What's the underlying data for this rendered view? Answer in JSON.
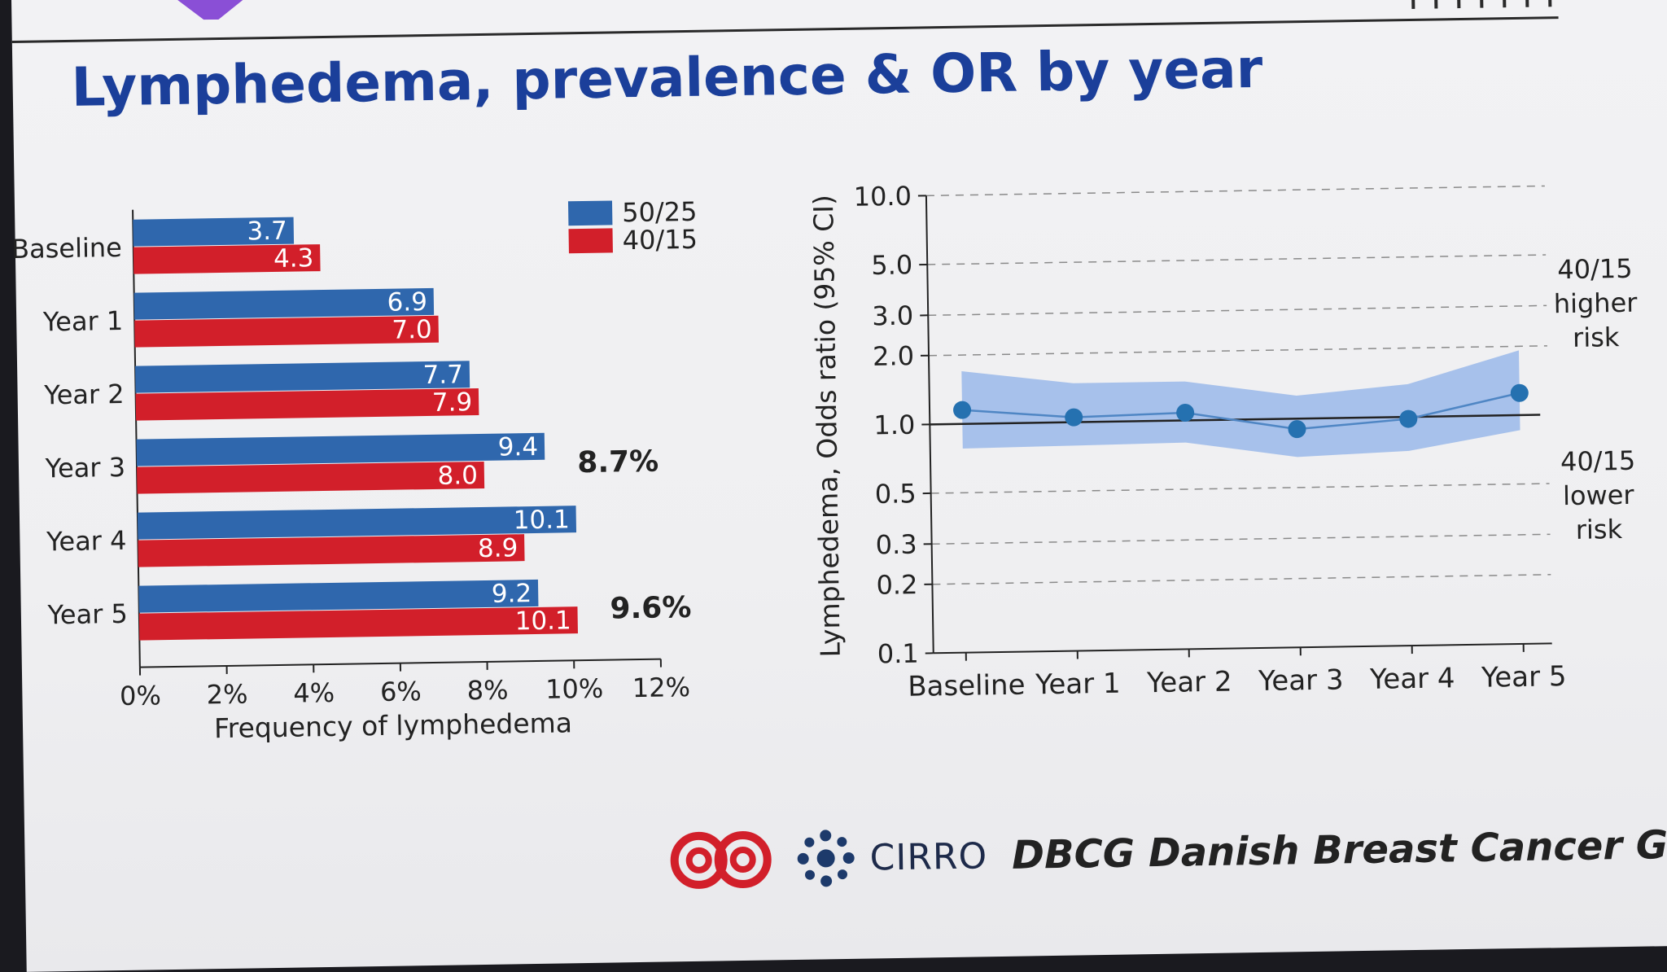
{
  "title": "Lymphedema, prevalence & OR by year",
  "colors": {
    "title": "#1b3f9a",
    "series_50_25": "#2f67ad",
    "series_40_15": "#d21f2a",
    "or_band": "#8fb2e8",
    "or_points": "#2571b0"
  },
  "chart_data": [
    {
      "type": "bar",
      "orientation": "horizontal",
      "categories": [
        "Baseline",
        "Year 1",
        "Year 2",
        "Year 3",
        "Year 4",
        "Year 5"
      ],
      "series": [
        {
          "name": "50/25",
          "values": [
            3.7,
            6.9,
            7.7,
            9.4,
            10.1,
            9.2
          ],
          "labels": [
            "3.7",
            "6.9",
            "7.7",
            "9.4",
            "10.1",
            "9.2"
          ]
        },
        {
          "name": "40/15",
          "values": [
            4.3,
            7.0,
            7.9,
            8.0,
            8.9,
            10.1
          ],
          "labels": [
            "4.3",
            "7.0",
            "7.9",
            "8.0",
            "8.9",
            "10.1"
          ]
        }
      ],
      "xlabel": "Frequency of lymphedema",
      "xlim": [
        0,
        12
      ],
      "xticks": [
        "0%",
        "2%",
        "4%",
        "6%",
        "8%",
        "10%",
        "12%"
      ],
      "legend_position": "top-right",
      "annotations": [
        {
          "category": "Year 3",
          "text": "8.7%"
        },
        {
          "category": "Year 5",
          "text": "9.6%"
        }
      ]
    },
    {
      "type": "line",
      "categories": [
        "Baseline",
        "Year 1",
        "Year 2",
        "Year 3",
        "Year 4",
        "Year 5"
      ],
      "odds_ratio": [
        1.15,
        1.05,
        1.08,
        0.9,
        0.98,
        1.25
      ],
      "ci_lower": [
        0.78,
        0.79,
        0.8,
        0.68,
        0.71,
        0.86
      ],
      "ci_upper": [
        1.7,
        1.48,
        1.48,
        1.26,
        1.39,
        1.92
      ],
      "ylabel": "Lymphedema, Odds ratio (95% CI)",
      "yscale": "log",
      "ylim": [
        0.1,
        10.0
      ],
      "yticks": [
        "10.0",
        "5.0",
        "3.0",
        "2.0",
        "1.0",
        "0.5",
        "0.3",
        "0.2",
        "0.1"
      ],
      "reference_line": 1.0,
      "grid": "dashed horizontal",
      "side_notes": {
        "upper": [
          "40/15",
          "higher",
          "risk"
        ],
        "lower": [
          "40/15",
          "lower",
          "risk"
        ]
      }
    }
  ],
  "footer": {
    "cirro": "CIRRO",
    "dbcg": "DBCG Danish Breast Cancer Group"
  }
}
